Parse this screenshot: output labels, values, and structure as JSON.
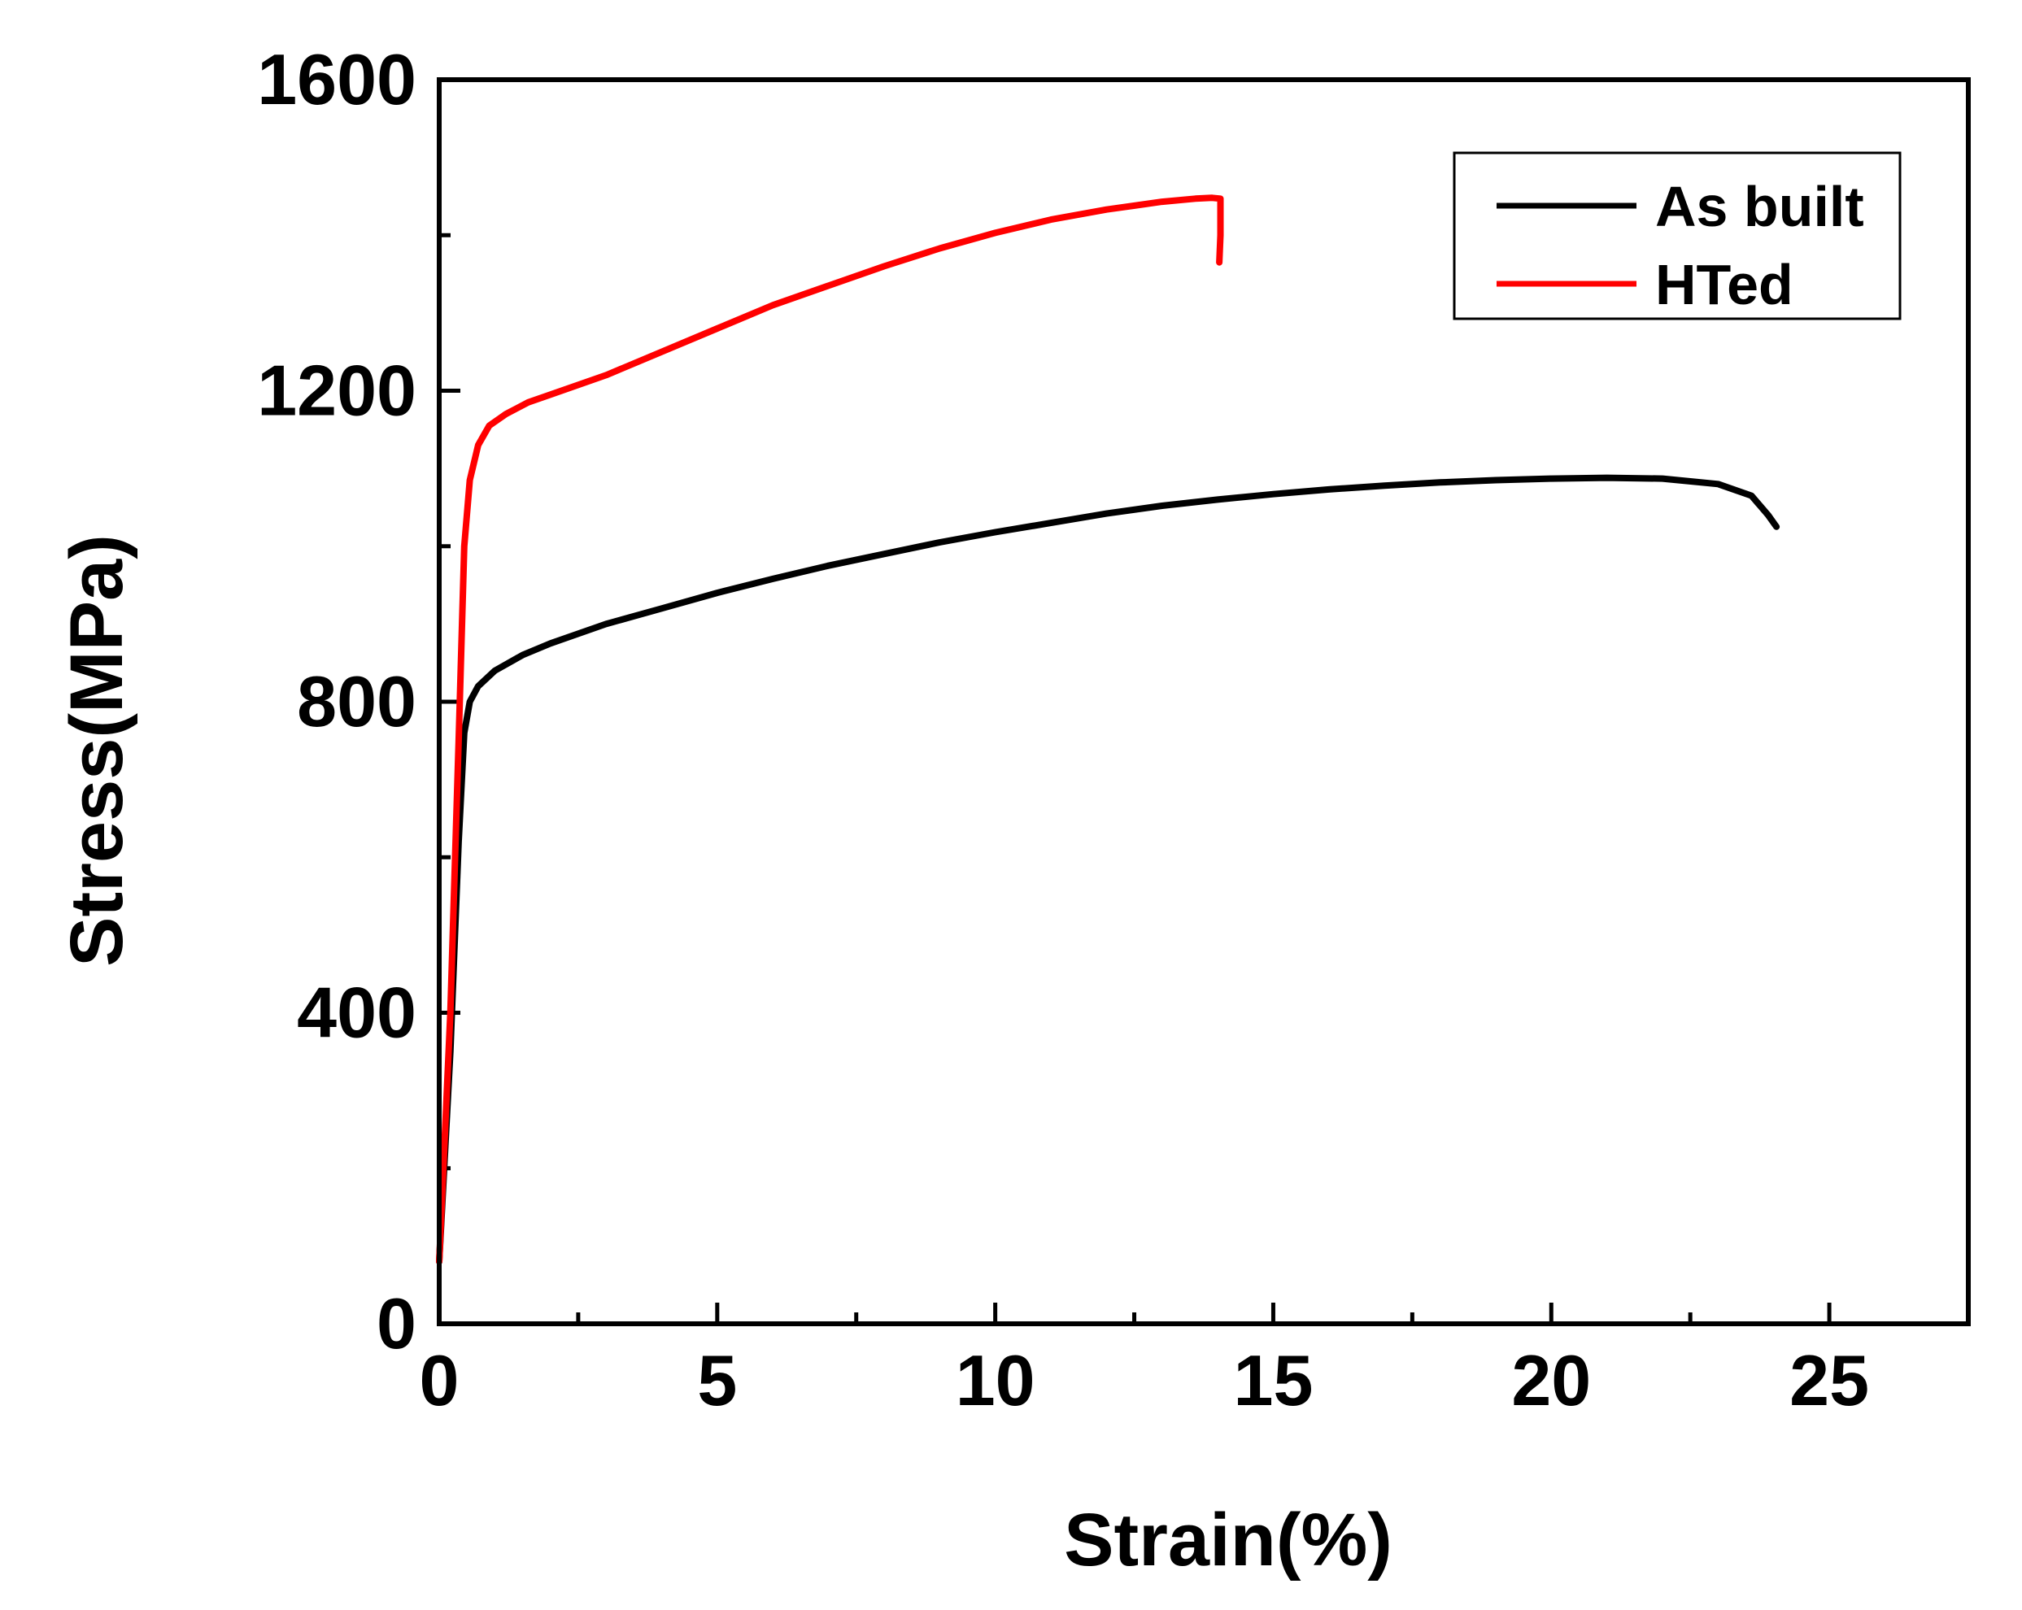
{
  "chart_data": {
    "type": "line",
    "title": "",
    "xlabel": "Strain(%)",
    "ylabel": "Stress(MPa)",
    "xlim": [
      0,
      27.5
    ],
    "ylim": [
      0,
      1600
    ],
    "xticks": [
      0,
      5,
      10,
      15,
      20,
      25
    ],
    "yticks": [
      0,
      400,
      800,
      1200,
      1600
    ],
    "grid": false,
    "legend_position": "top-right",
    "series": [
      {
        "name": "As built",
        "color": "#000000",
        "points": [
          [
            0,
            80
          ],
          [
            0.2,
            350
          ],
          [
            0.35,
            620
          ],
          [
            0.45,
            760
          ],
          [
            0.55,
            800
          ],
          [
            0.7,
            820
          ],
          [
            1,
            840
          ],
          [
            1.5,
            860
          ],
          [
            2,
            875
          ],
          [
            3,
            900
          ],
          [
            4,
            920
          ],
          [
            5,
            940
          ],
          [
            6,
            958
          ],
          [
            7,
            975
          ],
          [
            8,
            990
          ],
          [
            9,
            1005
          ],
          [
            10,
            1018
          ],
          [
            11,
            1030
          ],
          [
            12,
            1042
          ],
          [
            13,
            1052
          ],
          [
            14,
            1060
          ],
          [
            15,
            1067
          ],
          [
            16,
            1073
          ],
          [
            17,
            1078
          ],
          [
            18,
            1082
          ],
          [
            19,
            1085
          ],
          [
            20,
            1087
          ],
          [
            21,
            1088
          ],
          [
            22,
            1087
          ],
          [
            23,
            1080
          ],
          [
            23.6,
            1065
          ],
          [
            23.9,
            1040
          ],
          [
            24.05,
            1025
          ]
        ]
      },
      {
        "name": "HTed",
        "color": "#ff0000",
        "points": [
          [
            0,
            80
          ],
          [
            0.2,
            400
          ],
          [
            0.35,
            750
          ],
          [
            0.45,
            1000
          ],
          [
            0.55,
            1085
          ],
          [
            0.7,
            1130
          ],
          [
            0.9,
            1155
          ],
          [
            1.2,
            1170
          ],
          [
            1.6,
            1185
          ],
          [
            2,
            1195
          ],
          [
            3,
            1220
          ],
          [
            4,
            1250
          ],
          [
            5,
            1280
          ],
          [
            6,
            1310
          ],
          [
            7,
            1335
          ],
          [
            8,
            1360
          ],
          [
            9,
            1383
          ],
          [
            10,
            1403
          ],
          [
            11,
            1420
          ],
          [
            12,
            1433
          ],
          [
            13,
            1443
          ],
          [
            13.6,
            1447
          ],
          [
            13.9,
            1448
          ],
          [
            14.05,
            1447
          ],
          [
            14.05,
            1400
          ],
          [
            14.03,
            1365
          ]
        ]
      }
    ]
  }
}
